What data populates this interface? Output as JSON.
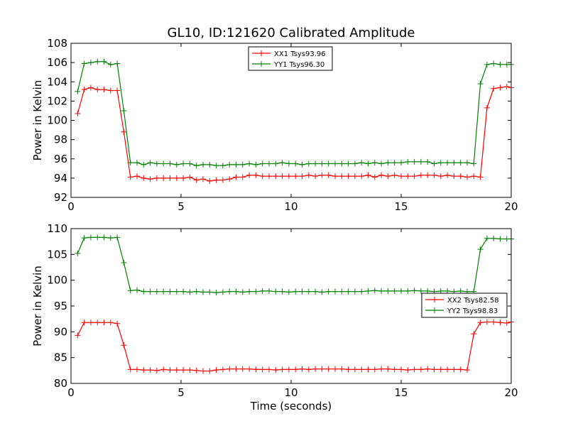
{
  "figure": {
    "title": "GL10, ID:121620 Calibrated Amplitude",
    "xlabel": "Time (seconds)"
  },
  "chart_data": [
    {
      "type": "line",
      "ylabel": "Power in Kelvin",
      "xlabel": "",
      "xlim": [
        0,
        20
      ],
      "ylim": [
        92,
        108
      ],
      "xticks": [
        "0",
        "5",
        "10",
        "15",
        "20"
      ],
      "yticks": [
        "92",
        "94",
        "96",
        "98",
        "100",
        "102",
        "104",
        "106",
        "108"
      ],
      "grid": false,
      "legend_position": "upper center",
      "x": [
        0.3,
        0.6,
        0.9,
        1.2,
        1.5,
        1.8,
        2.1,
        2.4,
        2.7,
        3.0,
        3.3,
        3.6,
        3.9,
        4.2,
        4.5,
        4.8,
        5.1,
        5.4,
        5.7,
        6.0,
        6.3,
        6.6,
        6.9,
        7.2,
        7.5,
        7.8,
        8.1,
        8.4,
        8.7,
        9.0,
        9.3,
        9.6,
        9.9,
        10.2,
        10.5,
        10.8,
        11.1,
        11.4,
        11.7,
        12.0,
        12.3,
        12.6,
        12.9,
        13.2,
        13.5,
        13.8,
        14.1,
        14.4,
        14.7,
        15.0,
        15.3,
        15.6,
        15.9,
        16.2,
        16.5,
        16.8,
        17.1,
        17.4,
        17.7,
        18.0,
        18.3,
        18.6,
        18.9,
        19.2,
        19.5,
        19.8,
        20.0
      ],
      "series": [
        {
          "name": "XX1 Tsys93.96",
          "color": "#ff0000",
          "values": [
            100.7,
            103.2,
            103.4,
            103.2,
            103.2,
            103.1,
            103.1,
            98.8,
            94.1,
            94.2,
            94.0,
            93.9,
            94.0,
            94.0,
            94.0,
            94.0,
            94.0,
            94.1,
            93.8,
            93.9,
            93.7,
            93.8,
            93.8,
            93.9,
            94.1,
            94.1,
            94.3,
            94.3,
            94.2,
            94.2,
            94.2,
            94.2,
            94.2,
            94.2,
            94.2,
            94.3,
            94.2,
            94.3,
            94.3,
            94.2,
            94.2,
            94.2,
            94.2,
            94.2,
            94.3,
            94.1,
            94.3,
            94.2,
            94.3,
            94.2,
            94.2,
            94.2,
            94.3,
            94.3,
            94.3,
            94.2,
            94.3,
            94.2,
            94.2,
            94.1,
            94.2,
            94.1,
            101.3,
            103.3,
            103.4,
            103.5,
            103.4
          ],
          "values_note": ""
        },
        {
          "name": "YY1 Tsys96.30",
          "color": "#008000",
          "values": [
            103.0,
            105.9,
            106.0,
            106.1,
            106.1,
            105.8,
            105.9,
            101.0,
            95.6,
            95.6,
            95.4,
            95.6,
            95.5,
            95.5,
            95.5,
            95.4,
            95.5,
            95.5,
            95.3,
            95.4,
            95.4,
            95.3,
            95.3,
            95.4,
            95.4,
            95.4,
            95.5,
            95.4,
            95.5,
            95.5,
            95.5,
            95.6,
            95.5,
            95.5,
            95.4,
            95.5,
            95.5,
            95.5,
            95.5,
            95.5,
            95.5,
            95.5,
            95.5,
            95.6,
            95.5,
            95.6,
            95.5,
            95.6,
            95.6,
            95.6,
            95.7,
            95.7,
            95.7,
            95.7,
            95.5,
            95.6,
            95.6,
            95.6,
            95.6,
            95.6,
            95.5,
            103.8,
            105.8,
            105.9,
            105.8,
            105.8,
            105.8
          ],
          "values_note": ""
        }
      ]
    },
    {
      "type": "line",
      "ylabel": "Power in Kelvin",
      "xlabel": "Time (seconds)",
      "xlim": [
        0,
        20
      ],
      "ylim": [
        80,
        110
      ],
      "xticks": [
        "0",
        "5",
        "10",
        "15",
        "20"
      ],
      "yticks": [
        "80",
        "85",
        "90",
        "95",
        "100",
        "105",
        "110"
      ],
      "grid": false,
      "legend_position": "center right",
      "x": [
        0.3,
        0.6,
        0.9,
        1.2,
        1.5,
        1.8,
        2.1,
        2.4,
        2.7,
        3.0,
        3.3,
        3.6,
        3.9,
        4.2,
        4.5,
        4.8,
        5.1,
        5.4,
        5.7,
        6.0,
        6.3,
        6.6,
        6.9,
        7.2,
        7.5,
        7.8,
        8.1,
        8.4,
        8.7,
        9.0,
        9.3,
        9.6,
        9.9,
        10.2,
        10.5,
        10.8,
        11.1,
        11.4,
        11.7,
        12.0,
        12.3,
        12.6,
        12.9,
        13.2,
        13.5,
        13.8,
        14.1,
        14.4,
        14.7,
        15.0,
        15.3,
        15.6,
        15.9,
        16.2,
        16.5,
        16.8,
        17.1,
        17.4,
        17.7,
        18.0,
        18.3,
        18.6,
        18.9,
        19.2,
        19.5,
        19.8,
        20.0
      ],
      "series": [
        {
          "name": "XX2 Tsys82.58",
          "color": "#ff0000",
          "values": [
            89.3,
            91.8,
            91.8,
            91.8,
            91.8,
            91.8,
            91.6,
            87.4,
            82.7,
            82.7,
            82.6,
            82.6,
            82.5,
            82.7,
            82.6,
            82.6,
            82.6,
            82.6,
            82.5,
            82.4,
            82.4,
            82.6,
            82.7,
            82.8,
            82.8,
            82.8,
            82.8,
            82.7,
            82.7,
            82.7,
            82.6,
            82.7,
            82.7,
            82.7,
            82.8,
            82.7,
            82.8,
            82.8,
            82.8,
            82.8,
            82.8,
            82.7,
            82.7,
            82.7,
            82.7,
            82.7,
            82.8,
            82.8,
            82.7,
            82.7,
            82.6,
            82.7,
            82.7,
            82.8,
            82.7,
            82.7,
            82.7,
            82.7,
            82.7,
            82.6,
            89.6,
            91.8,
            91.9,
            91.9,
            91.8,
            91.7,
            91.9
          ],
          "values_note": ""
        },
        {
          "name": "YY2 Tsys98.83",
          "color": "#008000",
          "values": [
            105.2,
            108.2,
            108.3,
            108.3,
            108.3,
            108.2,
            108.3,
            103.4,
            98.0,
            98.1,
            97.8,
            97.8,
            97.8,
            97.8,
            97.8,
            97.8,
            97.8,
            97.7,
            97.8,
            97.7,
            97.7,
            97.6,
            97.7,
            97.8,
            97.8,
            97.7,
            97.8,
            97.8,
            97.9,
            97.9,
            97.8,
            97.8,
            97.7,
            97.8,
            97.8,
            97.8,
            97.8,
            97.7,
            97.8,
            97.8,
            97.8,
            97.8,
            97.8,
            97.8,
            97.9,
            98.0,
            97.9,
            97.9,
            97.9,
            97.9,
            97.9,
            98.0,
            97.9,
            97.9,
            97.8,
            97.9,
            97.9,
            97.8,
            97.9,
            97.8,
            97.8,
            106.0,
            108.1,
            108.1,
            108.0,
            108.0,
            108.0
          ],
          "values_note": ""
        }
      ]
    }
  ]
}
